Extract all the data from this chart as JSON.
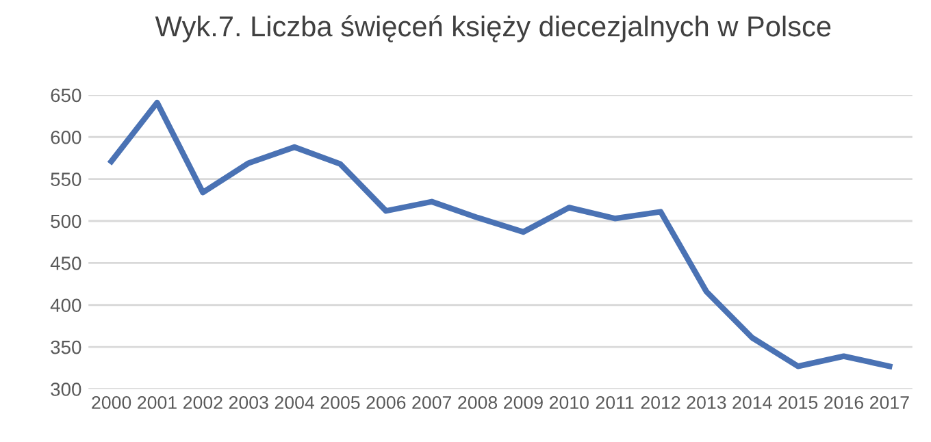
{
  "chart_data": {
    "type": "line",
    "title": "Wyk.7. Liczba święceń księży diecezjalnych w Polsce",
    "categories": [
      "2000",
      "2001",
      "2002",
      "2003",
      "2004",
      "2005",
      "2006",
      "2007",
      "2008",
      "2009",
      "2010",
      "2011",
      "2012",
      "2013",
      "2014",
      "2015",
      "2016",
      "2017"
    ],
    "series": [
      {
        "color": "#4a72b4",
        "values": [
          571,
          641,
          534,
          569,
          588,
          568,
          512,
          523,
          504,
          487,
          516,
          503,
          511,
          416,
          361,
          327,
          339,
          327
        ]
      }
    ],
    "ylim": [
      300,
      650
    ],
    "yticks": [
      300,
      350,
      400,
      450,
      500,
      550,
      600,
      650
    ],
    "grid": "y",
    "marker": "none",
    "line_style": "solid"
  }
}
